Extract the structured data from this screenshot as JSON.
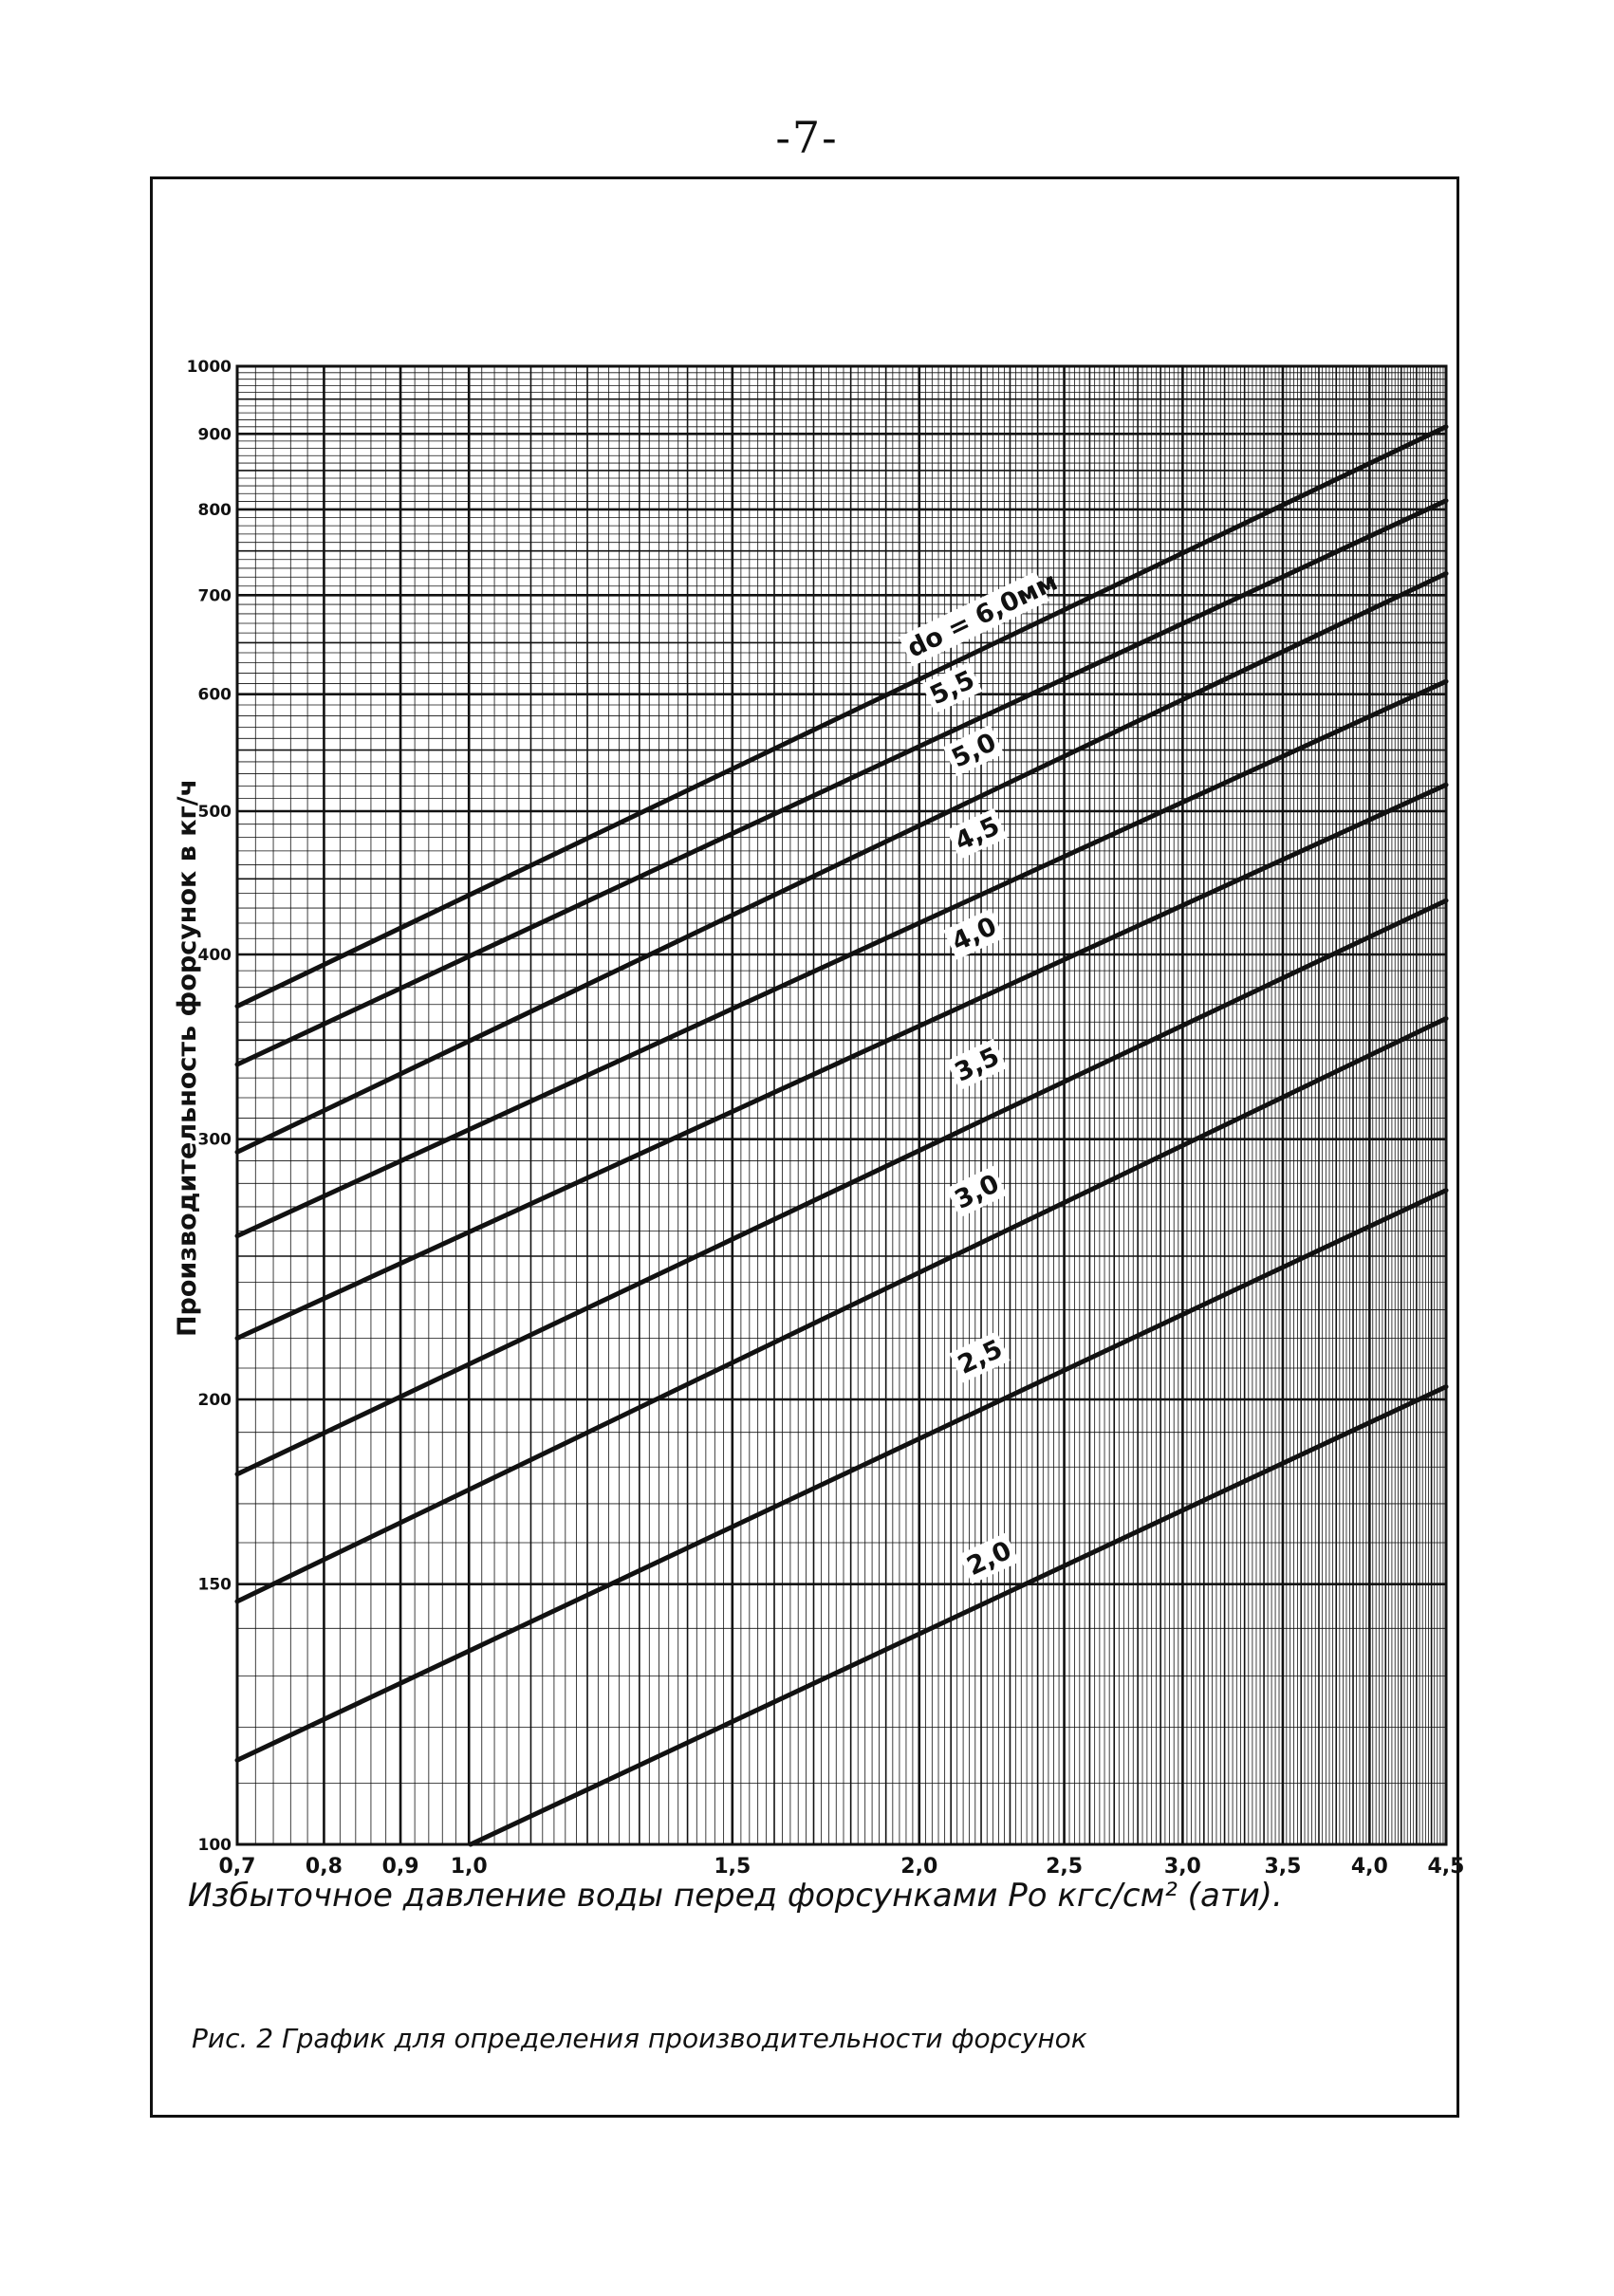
{
  "page": {
    "number": "-7-",
    "caption": "Рис. 2  График для определения производительности форсунок"
  },
  "chart_data": {
    "type": "line",
    "title": "",
    "xlabel": "Избыточное давление воды перед форсунками Po кгс/см² (ати).",
    "ylabel": "Производительность форсунок в кг/ч",
    "x_scale": "log",
    "y_scale": "log",
    "xlim": [
      0.7,
      4.5
    ],
    "ylim": [
      100,
      1000
    ],
    "grid": true,
    "x_ticks": [
      {
        "value": 0.7,
        "label": "0,7"
      },
      {
        "value": 0.8,
        "label": "0,8"
      },
      {
        "value": 0.9,
        "label": "0,9"
      },
      {
        "value": 1.0,
        "label": "1,0"
      },
      {
        "value": 1.5,
        "label": "1,5"
      },
      {
        "value": 2.0,
        "label": "2,0"
      },
      {
        "value": 2.5,
        "label": "2,5"
      },
      {
        "value": 3.0,
        "label": "3,0"
      },
      {
        "value": 3.5,
        "label": "3,5"
      },
      {
        "value": 4.0,
        "label": "4,0"
      },
      {
        "value": 4.5,
        "label": "4,5"
      }
    ],
    "y_ticks": [
      {
        "value": 100,
        "label": "100"
      },
      {
        "value": 150,
        "label": "150"
      },
      {
        "value": 200,
        "label": "200"
      },
      {
        "value": 300,
        "label": "300"
      },
      {
        "value": 400,
        "label": "400"
      },
      {
        "value": 500,
        "label": "500"
      },
      {
        "value": 600,
        "label": "600"
      },
      {
        "value": 700,
        "label": "700"
      },
      {
        "value": 800,
        "label": "800"
      },
      {
        "value": 900,
        "label": "900"
      },
      {
        "value": 1000,
        "label": "1000"
      }
    ],
    "series": [
      {
        "name": "do = 6,0мм",
        "x": [
          0.7,
          4.5
        ],
        "y": [
          369,
          910
        ]
      },
      {
        "name": "5,5",
        "x": [
          0.7,
          4.5
        ],
        "y": [
          337,
          811
        ]
      },
      {
        "name": "5,0",
        "x": [
          0.7,
          4.5
        ],
        "y": [
          294,
          724
        ]
      },
      {
        "name": "4,5",
        "x": [
          0.7,
          4.5
        ],
        "y": [
          258,
          612
        ]
      },
      {
        "name": "4,0",
        "x": [
          0.7,
          4.5
        ],
        "y": [
          220,
          521
        ]
      },
      {
        "name": "3,5",
        "x": [
          0.7,
          4.5
        ],
        "y": [
          178,
          435
        ]
      },
      {
        "name": "3,0",
        "x": [
          0.7,
          4.5
        ],
        "y": [
          146,
          362
        ]
      },
      {
        "name": "2,5",
        "x": [
          0.7,
          4.5
        ],
        "y": [
          114,
          277
        ]
      },
      {
        "name": "2,0",
        "x": [
          0.9,
          4.5
        ],
        "y": [
          95,
          204
        ]
      }
    ],
    "labels": [
      {
        "text": "do = 6,0мм",
        "x": 1.98,
        "y": 635,
        "series": 0
      },
      {
        "text": "5,5",
        "x": 2.05,
        "y": 590,
        "series": 1
      },
      {
        "text": "5,0",
        "x": 2.12,
        "y": 535,
        "series": 2
      },
      {
        "text": "4,5",
        "x": 2.13,
        "y": 470,
        "series": 3
      },
      {
        "text": "4,0",
        "x": 2.12,
        "y": 402,
        "series": 4
      },
      {
        "text": "3,5",
        "x": 2.13,
        "y": 328,
        "series": 5
      },
      {
        "text": "3,0",
        "x": 2.13,
        "y": 269,
        "series": 6
      },
      {
        "text": "2,5",
        "x": 2.14,
        "y": 208,
        "series": 7
      },
      {
        "text": "2,0",
        "x": 2.17,
        "y": 152,
        "series": 8
      }
    ]
  }
}
